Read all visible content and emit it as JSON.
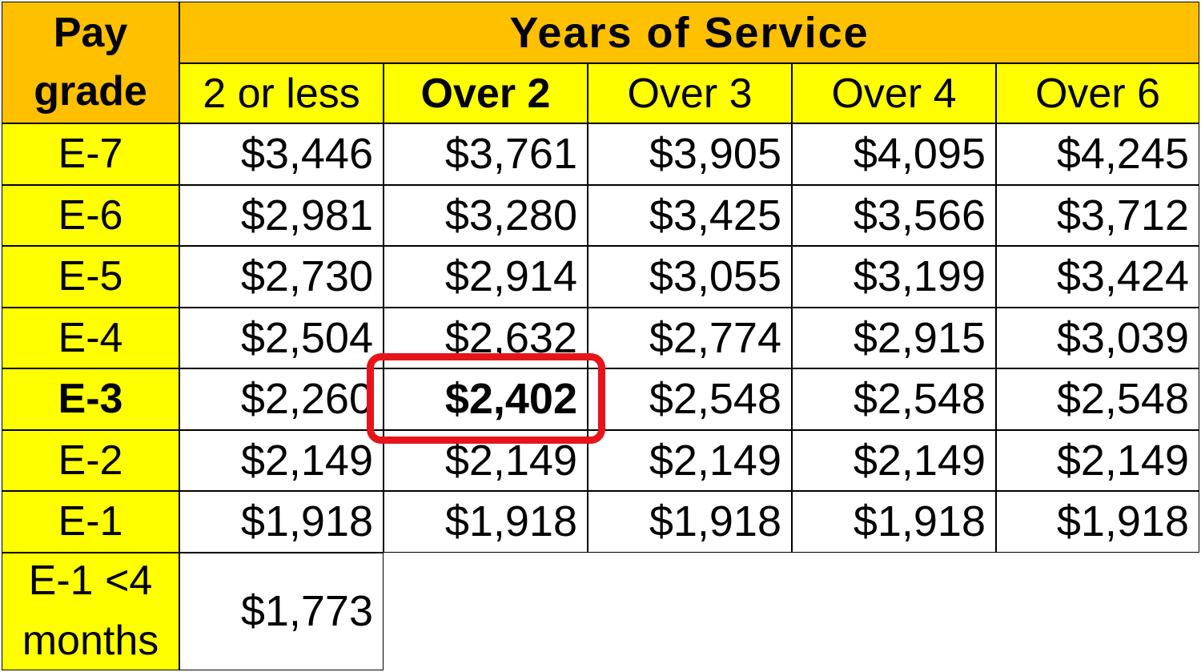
{
  "chart_data": {
    "type": "table",
    "corner_header": [
      "Pay",
      "grade"
    ],
    "group_header": "Years of Service",
    "columns": [
      {
        "label": "2 or less",
        "bold": false
      },
      {
        "label": "Over 2",
        "bold": true
      },
      {
        "label": "Over 3",
        "bold": false
      },
      {
        "label": "Over 4",
        "bold": false
      },
      {
        "label": "Over 6",
        "bold": false
      }
    ],
    "rows": [
      {
        "grade": [
          "E-7"
        ],
        "bold": false,
        "values": [
          "$3,446",
          "$3,761",
          "$3,905",
          "$4,095",
          "$4,245"
        ]
      },
      {
        "grade": [
          "E-6"
        ],
        "bold": false,
        "values": [
          "$2,981",
          "$3,280",
          "$3,425",
          "$3,566",
          "$3,712"
        ]
      },
      {
        "grade": [
          "E-5"
        ],
        "bold": false,
        "values": [
          "$2,730",
          "$2,914",
          "$3,055",
          "$3,199",
          "$3,424"
        ]
      },
      {
        "grade": [
          "E-4"
        ],
        "bold": false,
        "values": [
          "$2,504",
          "$2,632",
          "$2,774",
          "$2,915",
          "$3,039"
        ]
      },
      {
        "grade": [
          "E-3"
        ],
        "bold": true,
        "values": [
          "$2,260",
          "$2,402",
          "$2,548",
          "$2,548",
          "$2,548"
        ]
      },
      {
        "grade": [
          "E-2"
        ],
        "bold": false,
        "values": [
          "$2,149",
          "$2,149",
          "$2,149",
          "$2,149",
          "$2,149"
        ]
      },
      {
        "grade": [
          "E-1"
        ],
        "bold": false,
        "values": [
          "$1,918",
          "$1,918",
          "$1,918",
          "$1,918",
          "$1,918"
        ]
      },
      {
        "grade": [
          "E-1 <4",
          "months"
        ],
        "bold": false,
        "values": [
          "$1,773"
        ]
      }
    ],
    "highlight": {
      "row": 4,
      "col": 1,
      "color": "#E8141B"
    }
  },
  "colors": {
    "header": "#FFC000",
    "grade_column": "#FFFF00",
    "cells": "#FFFFFF",
    "highlight": "#E8141B"
  }
}
